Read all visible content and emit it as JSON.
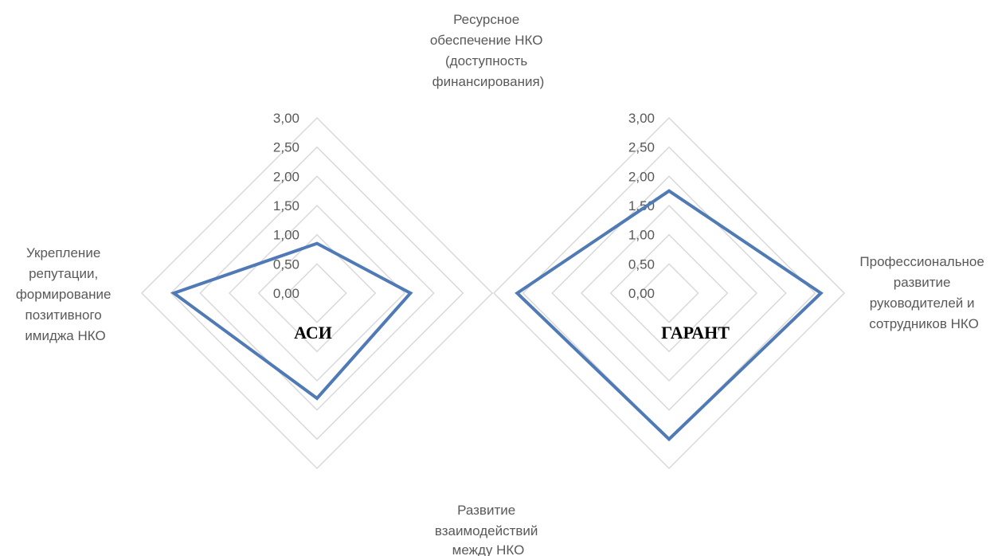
{
  "axis_labels": {
    "top": [
      "Ресурсное",
      "обеспечение НКО",
      "(доступность",
      "финансирования)"
    ],
    "right": [
      "Профессиональное",
      "развитие",
      "руководителей и",
      "сотрудников НКО"
    ],
    "bottom": [
      "Развитие",
      "взаимодействий",
      "между НКО"
    ],
    "left": [
      "Укрепление",
      "репутации,",
      "формирование",
      "позитивного",
      "имиджа НКО"
    ]
  },
  "chart_data": [
    {
      "type": "radar",
      "title": "АСИ",
      "axes": [
        "Ресурсное обеспечение НКО (доступность финансирования)",
        "Профессиональное развитие руководителей и сотрудников НКО",
        "Развитие взаимодействий между НКО",
        "Укрепление репутации, формирование позитивного имиджа НКО"
      ],
      "ticks": [
        "0,00",
        "0,50",
        "1,00",
        "1,50",
        "2,00",
        "2,50",
        "3,00"
      ],
      "range": [
        0,
        3
      ],
      "series": [
        {
          "values": [
            0.85,
            1.6,
            1.8,
            2.45
          ]
        }
      ],
      "color": "#4f7ab5",
      "grid": true
    },
    {
      "type": "radar",
      "title": "ГАРАНТ",
      "axes": [
        "Ресурсное обеспечение НКО (доступность финансирования)",
        "Профессиональное развитие руководителей и сотрудников НКО",
        "Развитие взаимодействий между НКО",
        "Укрепление репутации, формирование позитивного имиджа НКО"
      ],
      "ticks": [
        "0,00",
        "0,50",
        "1,00",
        "1,50",
        "2,00",
        "2,50",
        "3,00"
      ],
      "range": [
        0,
        3
      ],
      "series": [
        {
          "values": [
            1.75,
            2.6,
            2.5,
            2.6
          ]
        }
      ],
      "color": "#4f7ab5",
      "grid": true
    }
  ]
}
